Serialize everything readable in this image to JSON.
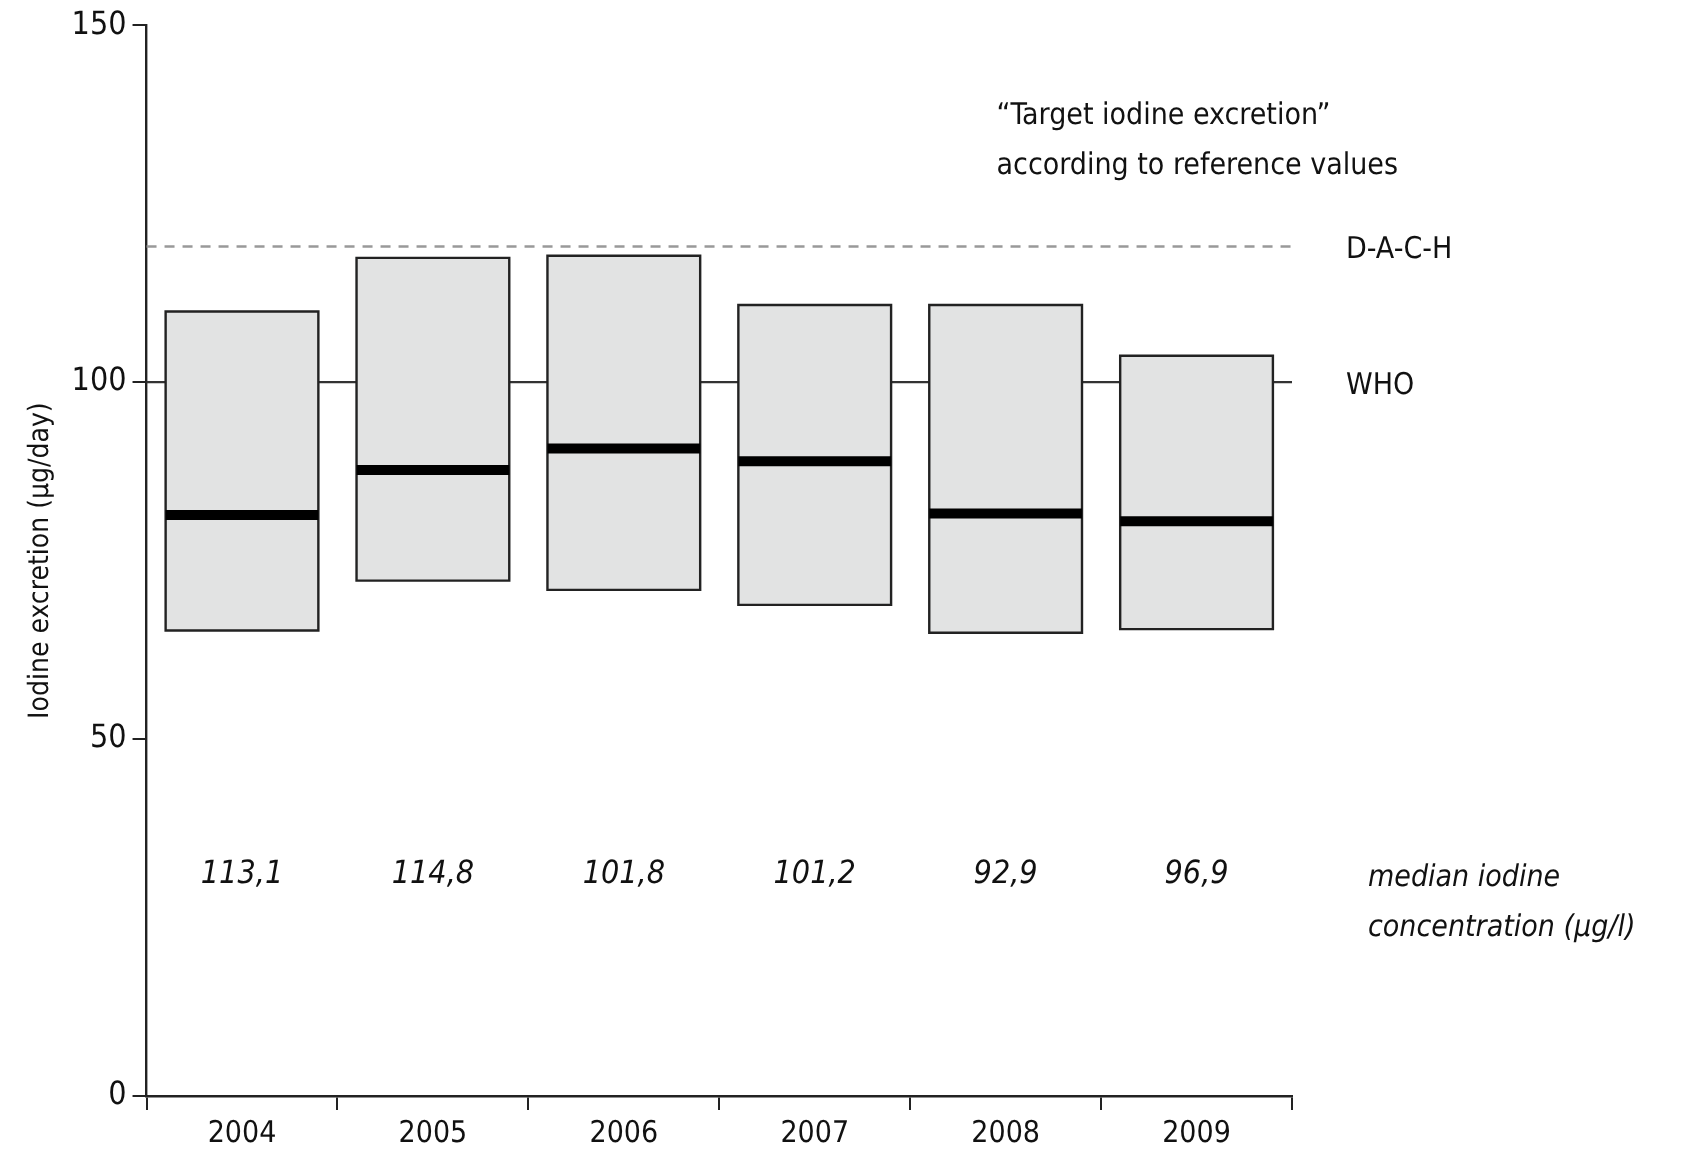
{
  "chart_data": {
    "type": "box",
    "ylabel": "Iodine excretion (µg/day)",
    "categories": [
      "2004",
      "2005",
      "2006",
      "2007",
      "2008",
      "2009"
    ],
    "color": "#e2e3e3",
    "boxes": [
      {
        "low": 65.2,
        "q1": 65.2,
        "median": 81.4,
        "q3": 109.9,
        "high": 109.9
      },
      {
        "low": 72.2,
        "q1": 72.2,
        "median": 87.7,
        "q3": 117.4,
        "high": 117.4
      },
      {
        "low": 70.9,
        "q1": 70.9,
        "median": 90.7,
        "q3": 117.7,
        "high": 117.7
      },
      {
        "low": 68.8,
        "q1": 68.8,
        "median": 88.9,
        "q3": 110.8,
        "high": 110.8
      },
      {
        "low": 64.9,
        "q1": 64.9,
        "median": 81.6,
        "q3": 110.8,
        "high": 110.8
      },
      {
        "low": 65.4,
        "q1": 65.4,
        "median": 80.5,
        "q3": 103.7,
        "high": 103.7
      }
    ],
    "ylim": [
      0,
      150
    ],
    "yticks": [
      0,
      50,
      100,
      150
    ],
    "ref_lines": [
      {
        "axis": "y",
        "value": 119,
        "label": "D-A-C-H",
        "color": "#999999",
        "line_style": "dashed"
      },
      {
        "axis": "y",
        "value": 100,
        "label": "WHO",
        "color": "#333333",
        "line_style": "solid"
      }
    ],
    "annotations": [
      "“Target iodine excretion” according to reference values",
      "113,1",
      "114,8",
      "101,8",
      "101,2",
      "92,9",
      "96,9",
      "median iodine concentration (µg/l)"
    ],
    "grid": false,
    "legend": false
  }
}
